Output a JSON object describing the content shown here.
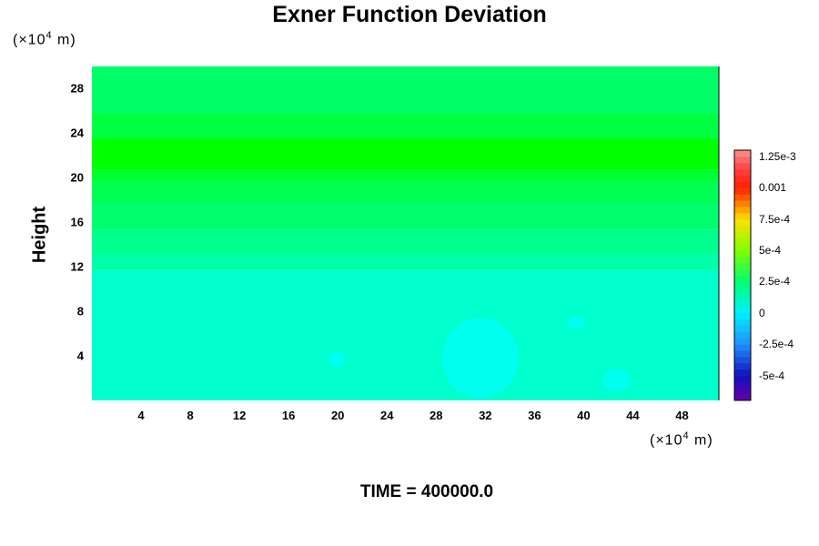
{
  "chart_data": {
    "type": "heatmap",
    "title": "Exner Function Deviation",
    "ylabel": "Height",
    "y_unit": "(×10",
    "y_unit_exp": "4",
    "y_unit_end": " m)",
    "x_unit": "(×10",
    "x_unit_exp": "4",
    "x_unit_end": " m)",
    "xlim": [
      0,
      51
    ],
    "ylim": [
      0,
      30
    ],
    "x_ticks": [
      "4",
      "8",
      "12",
      "16",
      "20",
      "24",
      "28",
      "32",
      "36",
      "40",
      "44",
      "48"
    ],
    "y_ticks": [
      "4",
      "8",
      "12",
      "16",
      "20",
      "24",
      "28"
    ],
    "colorbar": {
      "labels": [
        "1.25e-3",
        "0.001",
        "7.5e-4",
        "5e-4",
        "2.5e-4",
        "0",
        "-2.5e-4",
        "-5e-4"
      ],
      "range": [
        -0.0007,
        0.0013
      ]
    },
    "bands": [
      {
        "y0": 0,
        "y1": 11.7,
        "value": 5e-05,
        "color": "#00ffcc"
      },
      {
        "y0": 11.7,
        "y1": 13.2,
        "value": 0.00014,
        "color": "#00ffa6"
      },
      {
        "y0": 13.2,
        "y1": 15.3,
        "value": 0.00019,
        "color": "#00ff8c"
      },
      {
        "y0": 15.3,
        "y1": 17.7,
        "value": 0.00024,
        "color": "#00ff6e"
      },
      {
        "y0": 17.7,
        "y1": 19.7,
        "value": 0.00029,
        "color": "#00ff52"
      },
      {
        "y0": 19.7,
        "y1": 20.7,
        "value": 0.00034,
        "color": "#00ff30"
      },
      {
        "y0": 20.7,
        "y1": 23.5,
        "value": 0.00038,
        "color": "#00ff00"
      },
      {
        "y0": 23.5,
        "y1": 25.8,
        "value": 0.00031,
        "color": "#00ff40"
      },
      {
        "y0": 25.8,
        "y1": 30,
        "value": 0.00026,
        "color": "#00ff66"
      }
    ],
    "minima": [
      {
        "x": 31.6,
        "y": 3.8,
        "rx": 3.1,
        "ry": 3.6,
        "value": 0,
        "color": "#00ffee"
      },
      {
        "x": 19.9,
        "y": 3.7,
        "rx": 0.7,
        "ry": 0.7,
        "value": 0,
        "color": "#00ffee"
      },
      {
        "x": 39.4,
        "y": 7.0,
        "rx": 0.7,
        "ry": 0.6,
        "value": 0,
        "color": "#00ffee"
      },
      {
        "x": 42.7,
        "y": 1.8,
        "rx": 1.2,
        "ry": 1.0,
        "value": 0,
        "color": "#00ffee"
      }
    ],
    "time_label": "TIME = 400000.0"
  }
}
